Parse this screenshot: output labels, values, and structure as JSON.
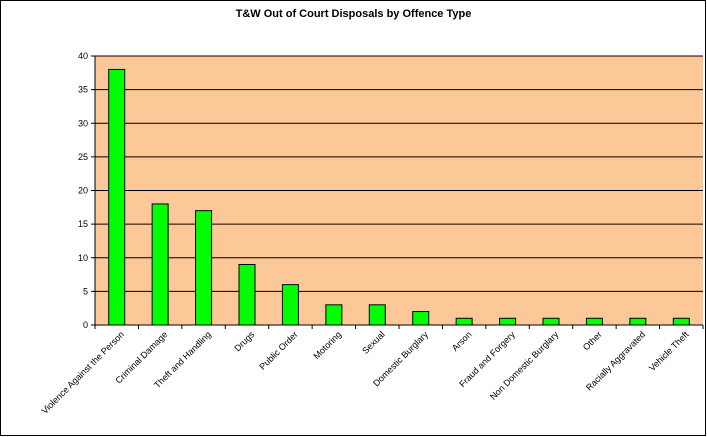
{
  "chart_data": {
    "type": "bar",
    "title": "T&W Out of Court Disposals by Offence Type",
    "xlabel": "",
    "ylabel": "",
    "categories": [
      "Violence Against the Person",
      "Criminal Damage",
      "Theft and Handling",
      "Drugs",
      "Public Order",
      "Motoring",
      "Sexual",
      "Domestic Burglary",
      "Arson",
      "Fraud and Forgery",
      "Non Domestic Burglary",
      "Other",
      "Racially Aggravated",
      "Vehicle Theft"
    ],
    "values": [
      38,
      18,
      17,
      9,
      6,
      3,
      3,
      2,
      1,
      1,
      1,
      1,
      1,
      1
    ],
    "ylim": [
      0,
      40
    ],
    "yticks": [
      0,
      5,
      10,
      15,
      20,
      25,
      30,
      35,
      40
    ],
    "grid": true,
    "legend": "none",
    "colors": {
      "plot_background": "#fcc898",
      "bar_fill": "#00ff00",
      "bar_stroke": "#000000",
      "gridline": "#000000"
    }
  }
}
